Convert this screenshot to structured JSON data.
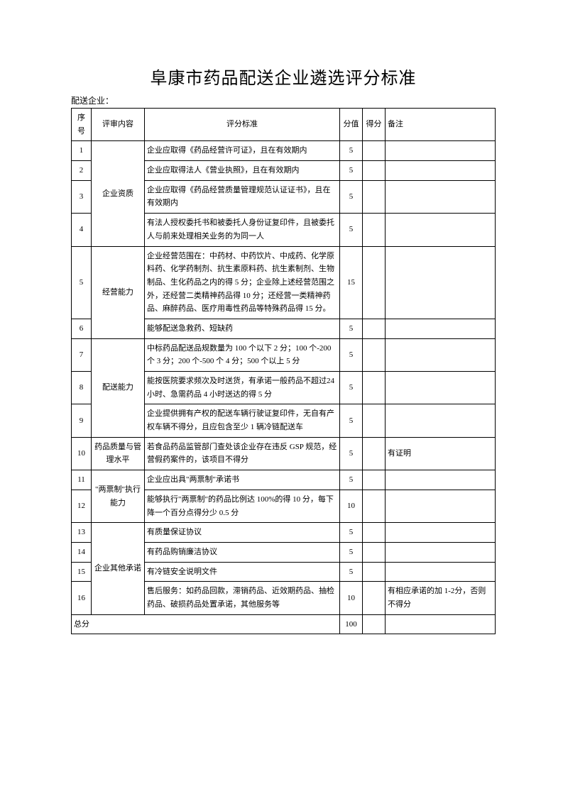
{
  "title": "阜康市药品配送企业遴选评分标准",
  "company_label": "配送企业：",
  "headers": {
    "seq": "序号",
    "category": "评审内容",
    "criteria": "评分标准",
    "score": "分值",
    "earned": "得分",
    "remarks": "备注"
  },
  "rows": [
    {
      "seq": "1",
      "category": "",
      "criteria": "企业应取得《药品经营许可证》，且在有效期内",
      "score": "5",
      "remarks": ""
    },
    {
      "seq": "2",
      "category": "",
      "criteria": "企业应取得法人《营业执照》，且在有效期内",
      "score": "5",
      "remarks": ""
    },
    {
      "seq": "3",
      "category": "企业资质",
      "criteria": "企业应取得《药品经营质量管理规范认证证书》，且在有效期内",
      "score": "5",
      "remarks": ""
    },
    {
      "seq": "4",
      "category": "",
      "criteria": "有法人授权委托书和被委托人身份证复印件，且被委托人与前来处理相关业务的为同一人",
      "score": "5",
      "remarks": ""
    },
    {
      "seq": "5",
      "category": "经营能力",
      "criteria": "企业经营范围在：中药材、中药饮片、中成药、化学原料药、化学药制剂、抗生素原料药、抗生素制剂、生物制品、生化药品之内的得 5 分；企业除上述经营范围之外，还经营二类精神药品得 10 分；还经营一类精神药品、麻醉药品、医疗用毒性药品等特殊药品得 15 分。",
      "score": "15",
      "remarks": ""
    },
    {
      "seq": "6",
      "category": "",
      "criteria": "能够配送急救药、短缺药",
      "score": "5",
      "remarks": ""
    },
    {
      "seq": "7",
      "category": "",
      "criteria": "中标药品配送品规数量为 100 个以下 2 分；100 个-200个 3 分；200 个-500 个 4 分；500 个以上 5 分",
      "score": "5",
      "remarks": ""
    },
    {
      "seq": "8",
      "category": "配送能力",
      "criteria": "能按医院要求频次及时送货，有承诺一般药品不超过24 小时、急需药品 4 小时送达的得 5 分",
      "score": "5",
      "remarks": ""
    },
    {
      "seq": "9",
      "category": "",
      "criteria": "企业提供拥有产权的配送车辆行驶证复印件，无自有产权车辆不得分，且应包含至少 1 辆冷链配送车",
      "score": "5",
      "remarks": ""
    },
    {
      "seq": "10",
      "category": "药品质量与管理水平",
      "criteria": "若食品药品监管部门查处该企业存在违反 GSP 规范，经营假药案件的，该项目不得分",
      "score": "5",
      "remarks": "有证明"
    },
    {
      "seq": "11",
      "category": "",
      "criteria": "企业应出具\"两票制\"承诺书",
      "score": "5",
      "remarks": ""
    },
    {
      "seq": "12",
      "category": "\"两票制\"执行能力",
      "criteria": "能够执行\"两票制\"的药品比例达 100%的得 10 分，每下降一个百分点得分少 0.5 分",
      "score": "10",
      "remarks": ""
    },
    {
      "seq": "13",
      "category": "",
      "criteria": "有质量保证协议",
      "score": "5",
      "remarks": ""
    },
    {
      "seq": "14",
      "category": "",
      "criteria": "有药品购销廉洁协议",
      "score": "5",
      "remarks": ""
    },
    {
      "seq": "15",
      "category": "企业其他承诺",
      "criteria": "有冷链安全说明文件",
      "score": "5",
      "remarks": ""
    },
    {
      "seq": "16",
      "category": "",
      "criteria": "售后服务：如药品回款，滞销药品、近效期药品、抽检药品、破损药品处置承诺，其他服务等",
      "score": "10",
      "remarks": "有相应承诺的加 1-2分，否则不得分"
    }
  ],
  "total": {
    "label": "总分",
    "score": "100"
  }
}
